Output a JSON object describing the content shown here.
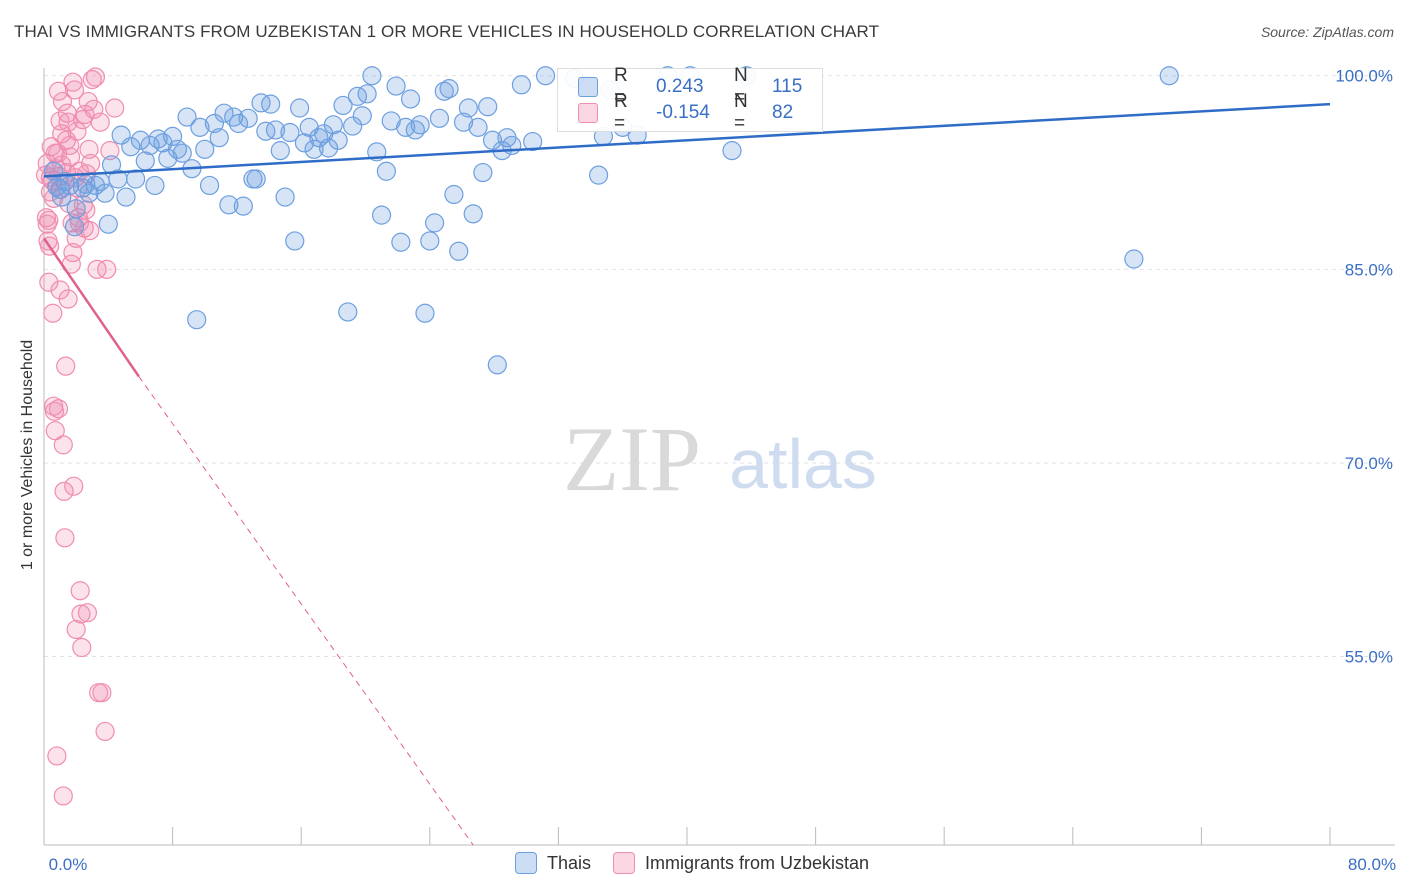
{
  "title": "THAI VS IMMIGRANTS FROM UZBEKISTAN 1 OR MORE VEHICLES IN HOUSEHOLD CORRELATION CHART",
  "source": "Source: ZipAtlas.com",
  "watermark": {
    "zip": "ZIP",
    "atlas": "atlas"
  },
  "colors": {
    "thai": "#6d9fe0",
    "thai_line": "#2f6cc8",
    "uzbek": "#f08db0",
    "uzbek_line": "#e0608f",
    "accent_text": "#3a6fc4"
  },
  "legend": {
    "r_label": "R =",
    "n_label": "N =",
    "thai": {
      "r": "0.243",
      "n": "115"
    },
    "uzbek": {
      "r": "-0.154",
      "n": "82"
    }
  },
  "bottom_legend": {
    "thai": "Thais",
    "uzbek": "Immigrants from Uzbekistan"
  },
  "chart_data": {
    "type": "scatter",
    "xlabel": "",
    "ylabel": "1 or more Vehicles in Household",
    "xlim": [
      0,
      80
    ],
    "ylim": [
      40.4,
      100.6
    ],
    "x_tick_labels": [
      "0.0%",
      "80.0%"
    ],
    "y_ticks": [
      55,
      70,
      85,
      100
    ],
    "y_tick_labels": [
      "55.0%",
      "70.0%",
      "85.0%",
      "100.0%"
    ],
    "grid": true,
    "series": [
      {
        "name": "Thais",
        "trend": {
          "x": [
            0,
            80
          ],
          "y": [
            92.2,
            97.8
          ],
          "dashed_from": null
        },
        "points": [
          [
            0.6,
            92.6
          ],
          [
            0.8,
            91.4
          ],
          [
            1.1,
            90.6
          ],
          [
            1.3,
            91.8
          ],
          [
            1.6,
            91.5
          ],
          [
            1.9,
            88.3
          ],
          [
            2.0,
            89.7
          ],
          [
            2.4,
            91.3
          ],
          [
            2.8,
            90.9
          ],
          [
            3.2,
            91.5
          ],
          [
            3.5,
            91.8
          ],
          [
            3.8,
            90.9
          ],
          [
            4.0,
            88.5
          ],
          [
            4.2,
            93.1
          ],
          [
            4.6,
            92.0
          ],
          [
            4.8,
            95.4
          ],
          [
            5.1,
            90.6
          ],
          [
            5.4,
            94.5
          ],
          [
            5.7,
            92.0
          ],
          [
            6.0,
            95.0
          ],
          [
            6.3,
            93.4
          ],
          [
            6.6,
            94.6
          ],
          [
            6.9,
            91.5
          ],
          [
            7.1,
            95.1
          ],
          [
            7.4,
            94.8
          ],
          [
            7.7,
            93.6
          ],
          [
            8.0,
            95.3
          ],
          [
            8.3,
            94.3
          ],
          [
            8.6,
            94.0
          ],
          [
            8.9,
            96.8
          ],
          [
            9.2,
            92.8
          ],
          [
            9.5,
            81.1
          ],
          [
            9.7,
            96.0
          ],
          [
            10.0,
            94.3
          ],
          [
            10.3,
            91.5
          ],
          [
            10.6,
            96.3
          ],
          [
            10.9,
            95.2
          ],
          [
            11.2,
            97.1
          ],
          [
            11.5,
            90.0
          ],
          [
            11.8,
            96.8
          ],
          [
            12.1,
            96.3
          ],
          [
            12.4,
            89.9
          ],
          [
            12.7,
            96.7
          ],
          [
            13.0,
            92.0
          ],
          [
            13.2,
            92.0
          ],
          [
            13.5,
            97.9
          ],
          [
            13.8,
            95.7
          ],
          [
            14.1,
            97.8
          ],
          [
            14.4,
            95.8
          ],
          [
            14.7,
            94.2
          ],
          [
            15.0,
            90.6
          ],
          [
            15.3,
            95.6
          ],
          [
            15.6,
            87.2
          ],
          [
            15.9,
            97.5
          ],
          [
            16.2,
            94.8
          ],
          [
            16.5,
            96.0
          ],
          [
            16.8,
            94.3
          ],
          [
            17.1,
            95.2
          ],
          [
            17.4,
            95.5
          ],
          [
            17.7,
            94.4
          ],
          [
            18.0,
            96.2
          ],
          [
            18.3,
            95.0
          ],
          [
            18.6,
            97.7
          ],
          [
            18.9,
            81.7
          ],
          [
            19.2,
            96.1
          ],
          [
            19.5,
            98.4
          ],
          [
            19.8,
            96.9
          ],
          [
            20.1,
            98.6
          ],
          [
            20.4,
            100.0
          ],
          [
            20.7,
            94.1
          ],
          [
            21.0,
            89.2
          ],
          [
            21.3,
            92.6
          ],
          [
            21.6,
            96.5
          ],
          [
            21.9,
            99.2
          ],
          [
            22.2,
            87.1
          ],
          [
            22.5,
            96.0
          ],
          [
            22.8,
            98.2
          ],
          [
            23.1,
            95.8
          ],
          [
            23.4,
            96.2
          ],
          [
            23.7,
            81.6
          ],
          [
            24.0,
            87.2
          ],
          [
            24.3,
            88.6
          ],
          [
            24.6,
            96.7
          ],
          [
            24.9,
            98.8
          ],
          [
            25.2,
            99.0
          ],
          [
            25.5,
            90.8
          ],
          [
            25.8,
            86.4
          ],
          [
            26.1,
            96.4
          ],
          [
            26.4,
            97.5
          ],
          [
            26.7,
            89.3
          ],
          [
            27.0,
            96.0
          ],
          [
            27.3,
            92.5
          ],
          [
            27.6,
            97.6
          ],
          [
            27.9,
            95.0
          ],
          [
            28.2,
            77.6
          ],
          [
            28.5,
            94.2
          ],
          [
            28.8,
            95.2
          ],
          [
            29.1,
            94.6
          ],
          [
            29.7,
            99.3
          ],
          [
            30.4,
            94.9
          ],
          [
            31.2,
            100.0
          ],
          [
            33.0,
            99.8
          ],
          [
            34.5,
            92.3
          ],
          [
            34.8,
            95.3
          ],
          [
            35.2,
            98.9
          ],
          [
            36.0,
            96.0
          ],
          [
            36.9,
            95.4
          ],
          [
            38.8,
            100.0
          ],
          [
            40.2,
            100.0
          ],
          [
            42.8,
            94.2
          ],
          [
            43.7,
            100.0
          ],
          [
            67.8,
            85.8
          ],
          [
            70.0,
            100.0
          ],
          [
            1.0,
            91.2
          ],
          [
            2.6,
            91.6
          ]
        ]
      },
      {
        "name": "Immigrants from Uzbekistan",
        "trend": {
          "x": [
            0,
            5.9,
            26.7
          ],
          "y": [
            87.4,
            76.7,
            40.4
          ],
          "dashed_from": 5.9
        },
        "points": [
          [
            0.1,
            92.3
          ],
          [
            0.15,
            89.0
          ],
          [
            0.2,
            88.5
          ],
          [
            0.25,
            87.2
          ],
          [
            0.3,
            84.0
          ],
          [
            0.35,
            86.8
          ],
          [
            0.4,
            92.1
          ],
          [
            0.45,
            94.5
          ],
          [
            0.5,
            91.9
          ],
          [
            0.55,
            81.6
          ],
          [
            0.6,
            74.4
          ],
          [
            0.65,
            74.0
          ],
          [
            0.7,
            72.5
          ],
          [
            0.75,
            92.8
          ],
          [
            0.8,
            47.3
          ],
          [
            0.85,
            94.0
          ],
          [
            0.9,
            98.8
          ],
          [
            0.95,
            92.2
          ],
          [
            1.0,
            83.4
          ],
          [
            1.05,
            91.2
          ],
          [
            1.1,
            93.1
          ],
          [
            1.15,
            98.0
          ],
          [
            1.2,
            71.4
          ],
          [
            1.25,
            67.8
          ],
          [
            1.3,
            64.2
          ],
          [
            1.35,
            77.5
          ],
          [
            1.4,
            95.0
          ],
          [
            1.45,
            97.1
          ],
          [
            1.5,
            96.4
          ],
          [
            1.55,
            90.1
          ],
          [
            1.6,
            94.6
          ],
          [
            1.65,
            93.7
          ],
          [
            1.7,
            85.4
          ],
          [
            1.75,
            88.6
          ],
          [
            1.8,
            86.3
          ],
          [
            1.85,
            68.2
          ],
          [
            1.9,
            98.9
          ],
          [
            1.95,
            92.1
          ],
          [
            2.0,
            57.1
          ],
          [
            2.05,
            95.7
          ],
          [
            2.1,
            91.3
          ],
          [
            2.15,
            89.0
          ],
          [
            2.2,
            88.6
          ],
          [
            2.25,
            60.1
          ],
          [
            2.3,
            58.3
          ],
          [
            2.35,
            55.7
          ],
          [
            2.4,
            96.6
          ],
          [
            2.45,
            90.0
          ],
          [
            2.5,
            88.2
          ],
          [
            2.55,
            97.0
          ],
          [
            2.6,
            89.6
          ],
          [
            2.65,
            92.4
          ],
          [
            2.7,
            58.4
          ],
          [
            2.75,
            98.0
          ],
          [
            2.8,
            94.3
          ],
          [
            2.85,
            88.0
          ],
          [
            2.9,
            93.2
          ],
          [
            3.0,
            99.7
          ],
          [
            3.1,
            97.4
          ],
          [
            3.3,
            85.0
          ],
          [
            3.4,
            52.2
          ],
          [
            3.5,
            96.4
          ],
          [
            3.6,
            52.2
          ],
          [
            3.8,
            49.2
          ],
          [
            3.9,
            85.0
          ],
          [
            4.1,
            94.2
          ],
          [
            4.4,
            97.5
          ],
          [
            1.2,
            44.2
          ],
          [
            0.7,
            94.0
          ],
          [
            1.0,
            96.5
          ],
          [
            0.4,
            91.0
          ],
          [
            0.2,
            93.2
          ],
          [
            0.6,
            90.5
          ],
          [
            1.4,
            92.5
          ],
          [
            2.0,
            87.4
          ],
          [
            1.8,
            99.5
          ],
          [
            0.9,
            74.2
          ],
          [
            0.3,
            88.8
          ],
          [
            1.1,
            95.5
          ],
          [
            2.2,
            92.6
          ],
          [
            1.5,
            82.7
          ],
          [
            3.2,
            99.9
          ]
        ]
      }
    ]
  }
}
